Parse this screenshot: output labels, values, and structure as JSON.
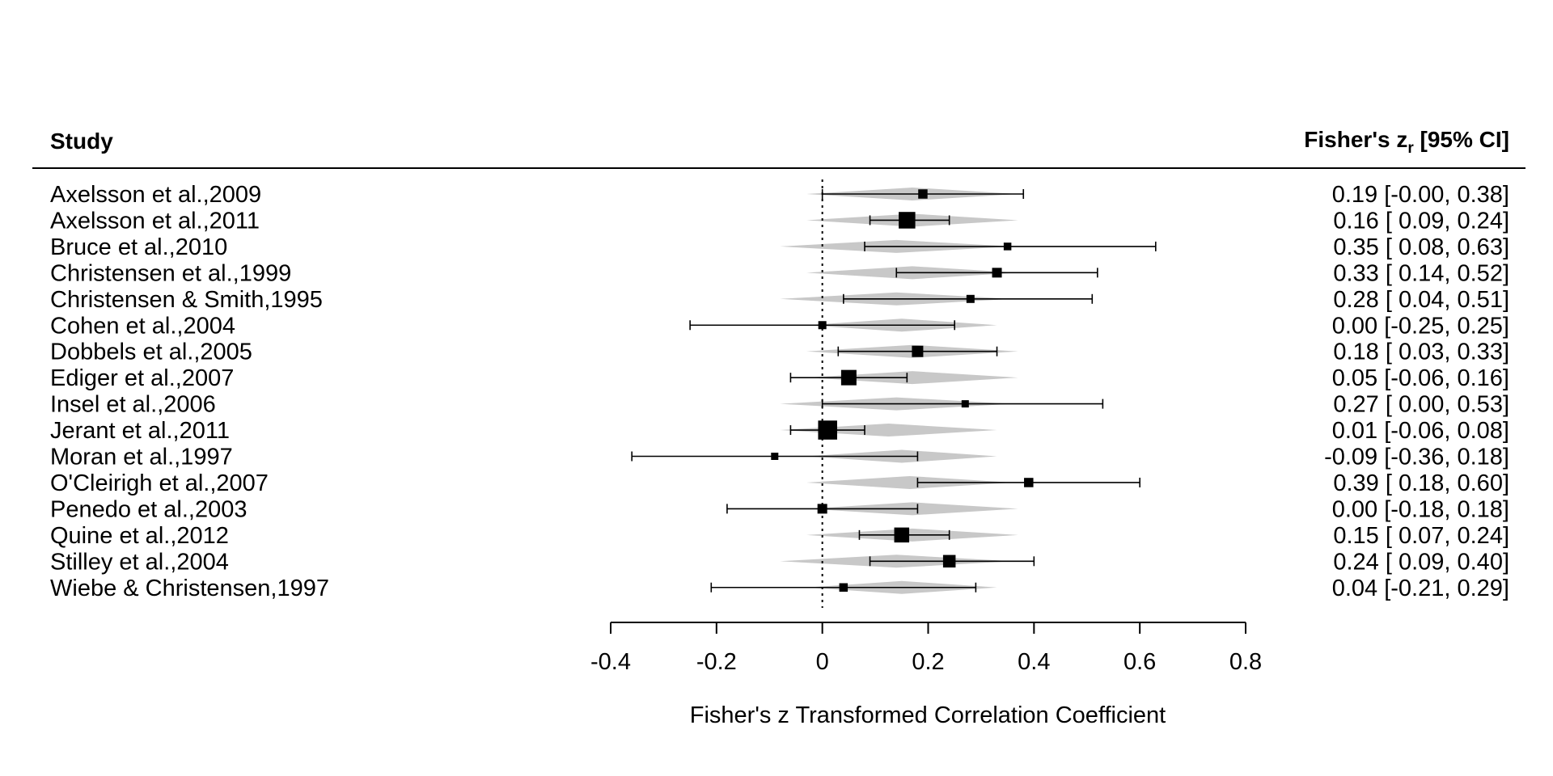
{
  "chart_data": {
    "type": "forest",
    "headers": {
      "left": "Study",
      "right_main": "Fisher's z",
      "right_sub": "r",
      "right_tail": " [95% CI]"
    },
    "xlabel": "Fisher's z Transformed Correlation Coefficient",
    "xlim": [
      -0.4,
      0.8
    ],
    "xticks": [
      -0.4,
      -0.2,
      0,
      0.2,
      0.4,
      0.6,
      0.8
    ],
    "xtick_labels": [
      "-0.4",
      "-0.2",
      "0",
      "0.2",
      "0.4",
      "0.6",
      "0.8"
    ],
    "reference_line": 0,
    "studies": [
      {
        "name": "Axelsson et al.,2009",
        "est": 0.19,
        "lo": -0.0,
        "hi": 0.38,
        "weight": 0.55,
        "ci_text": "0.19 [-0.00, 0.38]",
        "pi": [
          -0.03,
          0.37
        ]
      },
      {
        "name": "Axelsson et al.,2011",
        "est": 0.16,
        "lo": 0.09,
        "hi": 0.24,
        "weight": 1.45,
        "ci_text": "0.16 [ 0.09, 0.24]",
        "pi": [
          -0.03,
          0.37
        ]
      },
      {
        "name": "Bruce et al.,2010",
        "est": 0.35,
        "lo": 0.08,
        "hi": 0.63,
        "weight": 0.35,
        "ci_text": "0.35 [ 0.08, 0.63]",
        "pi": [
          -0.08,
          0.36
        ]
      },
      {
        "name": "Christensen et al.,1999",
        "est": 0.33,
        "lo": 0.14,
        "hi": 0.52,
        "weight": 0.6,
        "ci_text": "0.33 [ 0.14, 0.52]",
        "pi": [
          -0.03,
          0.37
        ]
      },
      {
        "name": "Christensen & Smith,1995",
        "est": 0.28,
        "lo": 0.04,
        "hi": 0.51,
        "weight": 0.4,
        "ci_text": "0.28 [ 0.04, 0.51]",
        "pi": [
          -0.08,
          0.36
        ]
      },
      {
        "name": "Cohen et al.,2004",
        "est": 0.0,
        "lo": -0.25,
        "hi": 0.25,
        "weight": 0.4,
        "ci_text": "0.00 [-0.25, 0.25]",
        "pi": [
          -0.03,
          0.33
        ]
      },
      {
        "name": "Dobbels et al.,2005",
        "est": 0.18,
        "lo": 0.03,
        "hi": 0.33,
        "weight": 0.8,
        "ci_text": "0.18 [ 0.03, 0.33]",
        "pi": [
          -0.03,
          0.37
        ]
      },
      {
        "name": "Ediger et al.,2007",
        "est": 0.05,
        "lo": -0.06,
        "hi": 0.16,
        "weight": 1.3,
        "ci_text": "0.05 [-0.06, 0.16]",
        "pi": [
          -0.03,
          0.37
        ]
      },
      {
        "name": "Insel et al.,2006",
        "est": 0.27,
        "lo": 0.0,
        "hi": 0.53,
        "weight": 0.3,
        "ci_text": "0.27 [ 0.00, 0.53]",
        "pi": [
          -0.08,
          0.36
        ]
      },
      {
        "name": "Jerant et al.,2011",
        "est": 0.01,
        "lo": -0.06,
        "hi": 0.08,
        "weight": 1.75,
        "ci_text": "0.01 [-0.06, 0.08]",
        "pi": [
          -0.08,
          0.33
        ]
      },
      {
        "name": "Moran et al.,1997",
        "est": -0.09,
        "lo": -0.36,
        "hi": 0.18,
        "weight": 0.3,
        "ci_text": "-0.09 [-0.36, 0.18]",
        "pi": [
          -0.03,
          0.33
        ]
      },
      {
        "name": "O'Cleirigh et al.,2007",
        "est": 0.39,
        "lo": 0.18,
        "hi": 0.6,
        "weight": 0.55,
        "ci_text": "0.39 [ 0.18, 0.60]",
        "pi": [
          -0.03,
          0.36
        ]
      },
      {
        "name": "Penedo et al.,2003",
        "est": 0.0,
        "lo": -0.18,
        "hi": 0.18,
        "weight": 0.6,
        "ci_text": "0.00 [-0.18, 0.18]",
        "pi": [
          -0.03,
          0.37
        ]
      },
      {
        "name": "Quine et al.,2012",
        "est": 0.15,
        "lo": 0.07,
        "hi": 0.24,
        "weight": 1.25,
        "ci_text": "0.15 [ 0.07, 0.24]",
        "pi": [
          -0.03,
          0.37
        ]
      },
      {
        "name": "Stilley et al.,2004",
        "est": 0.24,
        "lo": 0.09,
        "hi": 0.4,
        "weight": 0.95,
        "ci_text": "0.24 [ 0.09, 0.40]",
        "pi": [
          -0.08,
          0.36
        ]
      },
      {
        "name": "Wiebe & Christensen,1997",
        "est": 0.04,
        "lo": -0.21,
        "hi": 0.29,
        "weight": 0.45,
        "ci_text": "0.04 [-0.21, 0.29]",
        "pi": [
          -0.03,
          0.33
        ]
      }
    ],
    "colors": {
      "line": "#000000",
      "marker": "#000000",
      "interval_band": "#c8c8c8",
      "reference": "#000000"
    }
  }
}
